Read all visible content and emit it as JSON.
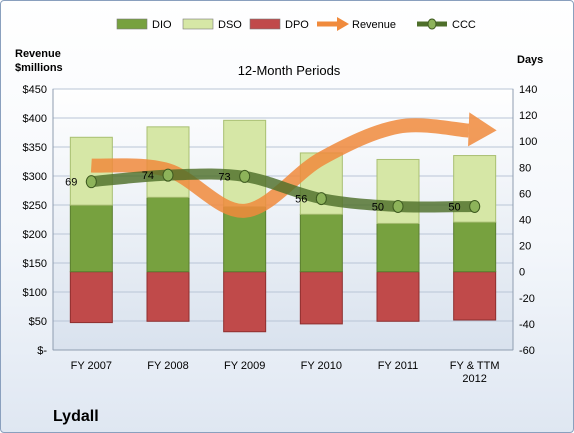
{
  "company": "Lydall",
  "chart_data": {
    "type": "bar",
    "title": "12-Month Periods",
    "categories": [
      "FY 2007",
      "FY 2008",
      "FY 2009",
      "FY 2010",
      "FY 2011",
      "FY & TTM 2012"
    ],
    "y_left": {
      "label": "Revenue\n$millions",
      "ylim": [
        0,
        450
      ],
      "ticks": [
        0,
        50,
        100,
        150,
        200,
        250,
        300,
        350,
        400,
        450
      ],
      "tick_labels": [
        "$-",
        "$50",
        "$100",
        "$150",
        "$200",
        "$250",
        "$300",
        "$350",
        "$400",
        "$450"
      ]
    },
    "y_right": {
      "label": "Days",
      "ylim": [
        -60,
        140
      ],
      "ticks": [
        -60,
        -40,
        -20,
        0,
        20,
        40,
        60,
        80,
        100,
        120,
        140
      ],
      "tick_labels": [
        "-60",
        "-40",
        "-20",
        "0",
        "20",
        "40",
        "60",
        "80",
        "100",
        "120",
        "140"
      ]
    },
    "series": [
      {
        "name": "DIO",
        "type": "stacked-bar",
        "axis": "right",
        "color": "#77a13f",
        "values": [
          51,
          57,
          50,
          44,
          37,
          38
        ]
      },
      {
        "name": "DSO",
        "type": "stacked-bar",
        "axis": "right",
        "color": "#d6e7a6",
        "values": [
          52,
          54,
          66,
          47,
          49,
          51
        ]
      },
      {
        "name": "DPO",
        "type": "stacked-bar",
        "axis": "right",
        "color": "#c04a4a",
        "values": [
          -39,
          -38,
          -46,
          -40,
          -38,
          -37
        ]
      },
      {
        "name": "Revenue",
        "type": "arrow-line",
        "axis": "left",
        "color": "#f08a3c",
        "values": [
          318,
          310,
          240,
          330,
          385,
          380
        ]
      },
      {
        "name": "CCC",
        "type": "line",
        "axis": "right",
        "color": "#4e6f2a",
        "values": [
          69,
          74,
          73,
          56,
          50,
          50
        ],
        "data_labels": [
          "69",
          "74",
          "73",
          "56",
          "50",
          "50"
        ]
      }
    ],
    "legend": {
      "position": "top",
      "items": [
        {
          "name": "DIO",
          "kind": "bar",
          "color": "#77a13f"
        },
        {
          "name": "DSO",
          "kind": "bar",
          "color": "#d6e7a6"
        },
        {
          "name": "DPO",
          "kind": "bar",
          "color": "#c04a4a"
        },
        {
          "name": "Revenue",
          "kind": "arrow",
          "color": "#f08a3c"
        },
        {
          "name": "CCC",
          "kind": "line-marker",
          "color": "#4e6f2a"
        }
      ]
    },
    "grid": true
  }
}
